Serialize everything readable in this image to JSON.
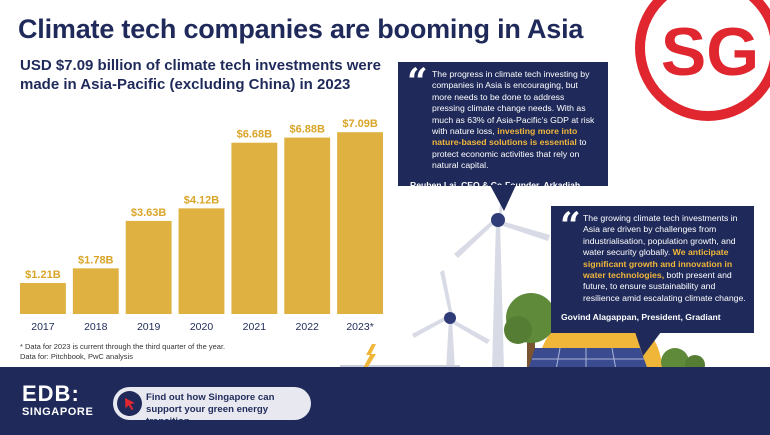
{
  "header": {
    "title": "Climate tech companies are booming in Asia",
    "subtitle": "USD $7.09 billion of climate tech investments were made in Asia-Pacific (excluding China) in 2023"
  },
  "logo": {
    "text": "SG",
    "color": "#e0262f"
  },
  "chart_data": {
    "type": "bar",
    "categories": [
      "2017",
      "2018",
      "2019",
      "2020",
      "2021",
      "2022",
      "2023*"
    ],
    "values": [
      1.21,
      1.78,
      3.63,
      4.12,
      6.68,
      6.88,
      7.09
    ],
    "data_labels": [
      "$1.21B",
      "$1.78B",
      "$3.63B",
      "$4.12B",
      "$6.68B",
      "$6.88B",
      "$7.09B"
    ],
    "unit": "USD billion",
    "ylim": [
      0,
      7.8
    ],
    "grid": false,
    "bar_color": "#deb141",
    "label_color": "#d9a528"
  },
  "notes": {
    "footnote": "* Data for 2023 is current through the third quarter of the year.",
    "source": "Data for: Pitchbook, PwC analysis"
  },
  "quotes": [
    {
      "mark": "“",
      "text_before": "The progress in climate tech investing by companies in Asia is encouraging, but more needs to be done to address pressing climate change needs. With as much as 63% of Asia-Pacific’s GDP at risk with nature loss, ",
      "highlight": "investing more into nature-based solutions is essential",
      "text_after": " to protect economic activities that rely on natural capital.",
      "author": "Reuben Lai, CEO & Co-Founder, Arkadiah"
    },
    {
      "mark": "“",
      "text_before": "The growing climate tech investments in Asia are driven by challenges from industrialisation, population growth, and water security globally. ",
      "highlight": "We anticipate significant growth and innovation in water technologies,",
      "text_after": " both present and future, to ensure sustainability and resilience amid escalating climate change.",
      "author": "Govind Alagappan, President, Gradiant"
    }
  ],
  "footer": {
    "brand": "EDB:",
    "brand_sub": "SINGAPORE",
    "cta_text": "Find out how Singapore can support your green energy transition."
  },
  "colors": {
    "navy": "#1f2a5a",
    "gold": "#deb141",
    "red": "#e0262f",
    "highlight": "#f0b63a"
  }
}
